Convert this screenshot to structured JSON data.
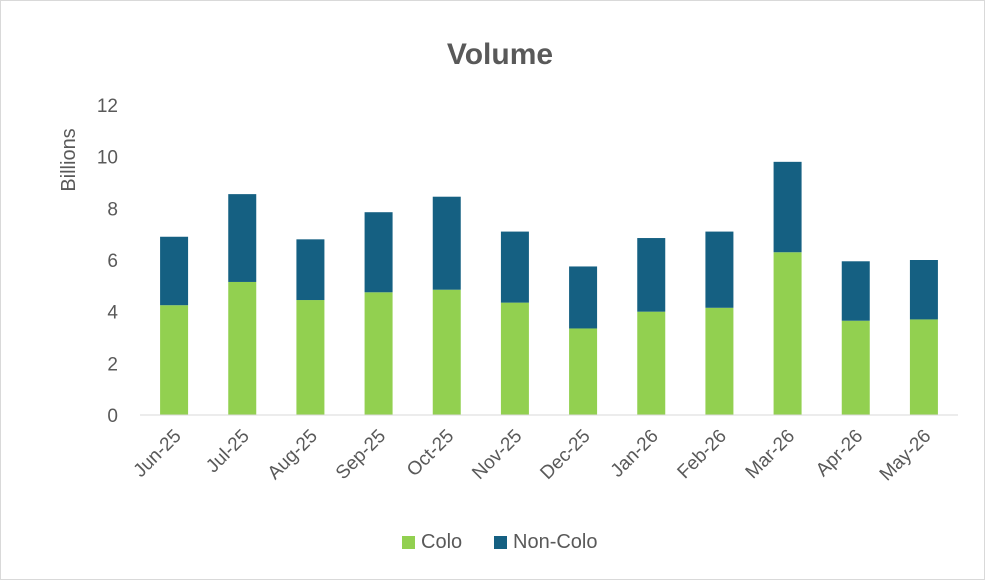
{
  "chart_data": {
    "type": "bar",
    "stacked": true,
    "title": "Volume",
    "ylabel": "Billions",
    "xlabel": "",
    "categories": [
      "Jun-25",
      "Jul-25",
      "Aug-25",
      "Sep-25",
      "Oct-25",
      "Nov-25",
      "Dec-25",
      "Jan-26",
      "Feb-26",
      "Mar-26",
      "Apr-26",
      "May-26"
    ],
    "series": [
      {
        "name": "Colo",
        "color": "#92d050",
        "values": [
          4.25,
          5.15,
          4.45,
          4.75,
          4.85,
          4.35,
          3.35,
          4.0,
          4.15,
          6.3,
          3.65,
          3.7
        ]
      },
      {
        "name": "Non-Colo",
        "color": "#156082",
        "values": [
          2.65,
          3.4,
          2.35,
          3.1,
          3.6,
          2.75,
          2.4,
          2.85,
          2.95,
          3.5,
          2.3,
          2.3
        ]
      }
    ],
    "ylim": [
      0,
      12
    ],
    "yticks": [
      0,
      2,
      4,
      6,
      8,
      10,
      12
    ],
    "grid": false,
    "legend_position": "bottom"
  }
}
